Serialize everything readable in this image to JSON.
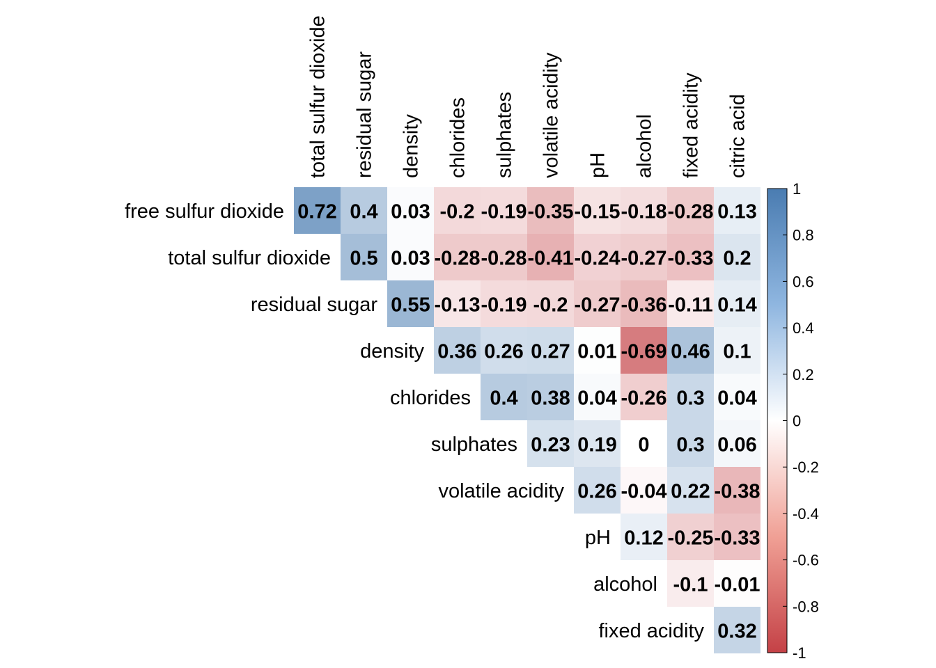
{
  "chart_data": {
    "type": "heatmap",
    "variant": "upper-triangle correlation matrix",
    "title": "",
    "variables": [
      "free sulfur dioxide",
      "total sulfur dioxide",
      "residual sugar",
      "density",
      "chlorides",
      "sulphates",
      "volatile acidity",
      "pH",
      "alcohol",
      "fixed acidity",
      "citric acid"
    ],
    "columns": [
      "total sulfur dioxide",
      "residual sugar",
      "density",
      "chlorides",
      "sulphates",
      "volatile acidity",
      "pH",
      "alcohol",
      "fixed acidity",
      "citric acid"
    ],
    "rows": [
      "free sulfur dioxide",
      "total sulfur dioxide",
      "residual sugar",
      "density",
      "chlorides",
      "sulphates",
      "volatile acidity",
      "pH",
      "alcohol",
      "fixed acidity"
    ],
    "values": [
      [
        0.72,
        0.4,
        0.03,
        -0.2,
        -0.19,
        -0.35,
        -0.15,
        -0.18,
        -0.28,
        0.13
      ],
      [
        null,
        0.5,
        0.03,
        -0.28,
        -0.28,
        -0.41,
        -0.24,
        -0.27,
        -0.33,
        0.2
      ],
      [
        null,
        null,
        0.55,
        -0.13,
        -0.19,
        -0.2,
        -0.27,
        -0.36,
        -0.11,
        0.14
      ],
      [
        null,
        null,
        null,
        0.36,
        0.26,
        0.27,
        0.01,
        -0.69,
        0.46,
        0.1
      ],
      [
        null,
        null,
        null,
        null,
        0.4,
        0.38,
        0.04,
        -0.26,
        0.3,
        0.04
      ],
      [
        null,
        null,
        null,
        null,
        null,
        0.23,
        0.19,
        0,
        0.3,
        0.06
      ],
      [
        null,
        null,
        null,
        null,
        null,
        null,
        0.26,
        -0.04,
        0.22,
        -0.38
      ],
      [
        null,
        null,
        null,
        null,
        null,
        null,
        null,
        0.12,
        -0.25,
        -0.33
      ],
      [
        null,
        null,
        null,
        null,
        null,
        null,
        null,
        null,
        -0.1,
        -0.01
      ],
      [
        null,
        null,
        null,
        null,
        null,
        null,
        null,
        null,
        null,
        0.32
      ]
    ],
    "labels": [
      [
        "0.72",
        "0.4",
        "0.03",
        "-0.2",
        "-0.19",
        "-0.35",
        "-0.15",
        "-0.18",
        "-0.28",
        "0.13"
      ],
      [
        null,
        "0.5",
        "0.03",
        "-0.28",
        "-0.28",
        "-0.41",
        "-0.24",
        "-0.27",
        "-0.33",
        "0.2"
      ],
      [
        null,
        null,
        "0.55",
        "-0.13",
        "-0.19",
        "-0.2",
        "-0.27",
        "-0.36",
        "-0.11",
        "0.14"
      ],
      [
        null,
        null,
        null,
        "0.36",
        "0.26",
        "0.27",
        "0.01",
        "-0.69",
        "0.46",
        "0.1"
      ],
      [
        null,
        null,
        null,
        null,
        "0.4",
        "0.38",
        "0.04",
        "-0.26",
        "0.3",
        "0.04"
      ],
      [
        null,
        null,
        null,
        null,
        null,
        "0.23",
        "0.19",
        "0",
        "0.3",
        "0.06"
      ],
      [
        null,
        null,
        null,
        null,
        null,
        null,
        "0.26",
        "-0.04",
        "0.22",
        "-0.38"
      ],
      [
        null,
        null,
        null,
        null,
        null,
        null,
        null,
        "0.12",
        "-0.25",
        "-0.33"
      ],
      [
        null,
        null,
        null,
        null,
        null,
        null,
        null,
        null,
        "-0.1",
        "-0.01"
      ],
      [
        null,
        null,
        null,
        null,
        null,
        null,
        null,
        null,
        null,
        "0.32"
      ]
    ],
    "colorbar": {
      "range": [
        -1,
        1
      ],
      "ticks": [
        "1",
        "0.8",
        "0.6",
        "0.4",
        "0.2",
        "0",
        "-0.2",
        "-0.4",
        "-0.6",
        "-0.8",
        "-1"
      ],
      "colors": {
        "negative": "#c44146",
        "zero": "#ffffff",
        "positive": "#4a7cb1"
      },
      "placement": "right"
    }
  }
}
